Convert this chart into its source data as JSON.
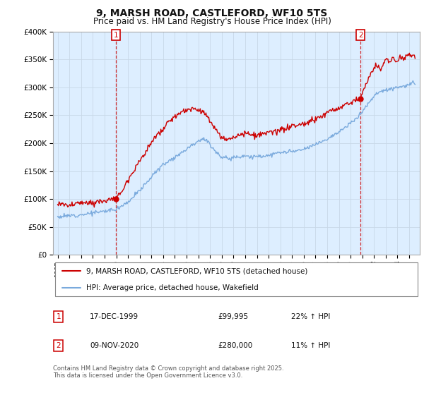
{
  "title": "9, MARSH ROAD, CASTLEFORD, WF10 5TS",
  "subtitle": "Price paid vs. HM Land Registry's House Price Index (HPI)",
  "legend_label_red": "9, MARSH ROAD, CASTLEFORD, WF10 5TS (detached house)",
  "legend_label_blue": "HPI: Average price, detached house, Wakefield",
  "annotation1_date": "17-DEC-1999",
  "annotation1_price": "£99,995",
  "annotation1_hpi": "22% ↑ HPI",
  "annotation2_date": "09-NOV-2020",
  "annotation2_price": "£280,000",
  "annotation2_hpi": "11% ↑ HPI",
  "footer": "Contains HM Land Registry data © Crown copyright and database right 2025.\nThis data is licensed under the Open Government Licence v3.0.",
  "ylim": [
    0,
    400000
  ],
  "yticks": [
    0,
    50000,
    100000,
    150000,
    200000,
    250000,
    300000,
    350000,
    400000
  ],
  "color_red": "#cc0000",
  "color_blue": "#7aaadd",
  "color_grid": "#c8d8e8",
  "bg_color": "#ddeeff",
  "marker1_year": 1999.96,
  "marker1_price": 99995,
  "marker2_year": 2020.86,
  "marker2_price": 280000,
  "xstart": 1995,
  "xend": 2025
}
